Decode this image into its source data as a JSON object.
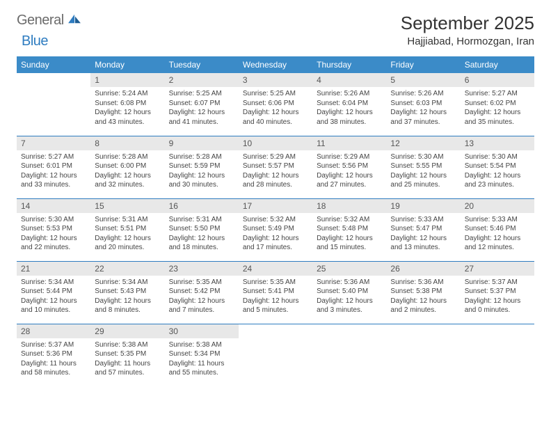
{
  "brand": {
    "text1": "General",
    "text2": "Blue"
  },
  "title": "September 2025",
  "location": "Hajjiabad, Hormozgan, Iran",
  "colors": {
    "header_bg": "#3b8bc8",
    "header_fg": "#ffffff",
    "daynum_bg": "#e8e8e8",
    "rule": "#2e7cc0",
    "logo_gray": "#6b6b6b",
    "logo_blue": "#2e7cc0"
  },
  "weekdays": [
    "Sunday",
    "Monday",
    "Tuesday",
    "Wednesday",
    "Thursday",
    "Friday",
    "Saturday"
  ],
  "weeks": [
    [
      {
        "n": "",
        "empty": true
      },
      {
        "n": "1",
        "sr": "5:24 AM",
        "ss": "6:08 PM",
        "dl": "12 hours and 43 minutes."
      },
      {
        "n": "2",
        "sr": "5:25 AM",
        "ss": "6:07 PM",
        "dl": "12 hours and 41 minutes."
      },
      {
        "n": "3",
        "sr": "5:25 AM",
        "ss": "6:06 PM",
        "dl": "12 hours and 40 minutes."
      },
      {
        "n": "4",
        "sr": "5:26 AM",
        "ss": "6:04 PM",
        "dl": "12 hours and 38 minutes."
      },
      {
        "n": "5",
        "sr": "5:26 AM",
        "ss": "6:03 PM",
        "dl": "12 hours and 37 minutes."
      },
      {
        "n": "6",
        "sr": "5:27 AM",
        "ss": "6:02 PM",
        "dl": "12 hours and 35 minutes."
      }
    ],
    [
      {
        "n": "7",
        "sr": "5:27 AM",
        "ss": "6:01 PM",
        "dl": "12 hours and 33 minutes."
      },
      {
        "n": "8",
        "sr": "5:28 AM",
        "ss": "6:00 PM",
        "dl": "12 hours and 32 minutes."
      },
      {
        "n": "9",
        "sr": "5:28 AM",
        "ss": "5:59 PM",
        "dl": "12 hours and 30 minutes."
      },
      {
        "n": "10",
        "sr": "5:29 AM",
        "ss": "5:57 PM",
        "dl": "12 hours and 28 minutes."
      },
      {
        "n": "11",
        "sr": "5:29 AM",
        "ss": "5:56 PM",
        "dl": "12 hours and 27 minutes."
      },
      {
        "n": "12",
        "sr": "5:30 AM",
        "ss": "5:55 PM",
        "dl": "12 hours and 25 minutes."
      },
      {
        "n": "13",
        "sr": "5:30 AM",
        "ss": "5:54 PM",
        "dl": "12 hours and 23 minutes."
      }
    ],
    [
      {
        "n": "14",
        "sr": "5:30 AM",
        "ss": "5:53 PM",
        "dl": "12 hours and 22 minutes."
      },
      {
        "n": "15",
        "sr": "5:31 AM",
        "ss": "5:51 PM",
        "dl": "12 hours and 20 minutes."
      },
      {
        "n": "16",
        "sr": "5:31 AM",
        "ss": "5:50 PM",
        "dl": "12 hours and 18 minutes."
      },
      {
        "n": "17",
        "sr": "5:32 AM",
        "ss": "5:49 PM",
        "dl": "12 hours and 17 minutes."
      },
      {
        "n": "18",
        "sr": "5:32 AM",
        "ss": "5:48 PM",
        "dl": "12 hours and 15 minutes."
      },
      {
        "n": "19",
        "sr": "5:33 AM",
        "ss": "5:47 PM",
        "dl": "12 hours and 13 minutes."
      },
      {
        "n": "20",
        "sr": "5:33 AM",
        "ss": "5:46 PM",
        "dl": "12 hours and 12 minutes."
      }
    ],
    [
      {
        "n": "21",
        "sr": "5:34 AM",
        "ss": "5:44 PM",
        "dl": "12 hours and 10 minutes."
      },
      {
        "n": "22",
        "sr": "5:34 AM",
        "ss": "5:43 PM",
        "dl": "12 hours and 8 minutes."
      },
      {
        "n": "23",
        "sr": "5:35 AM",
        "ss": "5:42 PM",
        "dl": "12 hours and 7 minutes."
      },
      {
        "n": "24",
        "sr": "5:35 AM",
        "ss": "5:41 PM",
        "dl": "12 hours and 5 minutes."
      },
      {
        "n": "25",
        "sr": "5:36 AM",
        "ss": "5:40 PM",
        "dl": "12 hours and 3 minutes."
      },
      {
        "n": "26",
        "sr": "5:36 AM",
        "ss": "5:38 PM",
        "dl": "12 hours and 2 minutes."
      },
      {
        "n": "27",
        "sr": "5:37 AM",
        "ss": "5:37 PM",
        "dl": "12 hours and 0 minutes."
      }
    ],
    [
      {
        "n": "28",
        "sr": "5:37 AM",
        "ss": "5:36 PM",
        "dl": "11 hours and 58 minutes."
      },
      {
        "n": "29",
        "sr": "5:38 AM",
        "ss": "5:35 PM",
        "dl": "11 hours and 57 minutes."
      },
      {
        "n": "30",
        "sr": "5:38 AM",
        "ss": "5:34 PM",
        "dl": "11 hours and 55 minutes."
      },
      {
        "n": "",
        "empty": true
      },
      {
        "n": "",
        "empty": true
      },
      {
        "n": "",
        "empty": true
      },
      {
        "n": "",
        "empty": true
      }
    ]
  ],
  "labels": {
    "sunrise": "Sunrise:",
    "sunset": "Sunset:",
    "daylight": "Daylight:"
  }
}
